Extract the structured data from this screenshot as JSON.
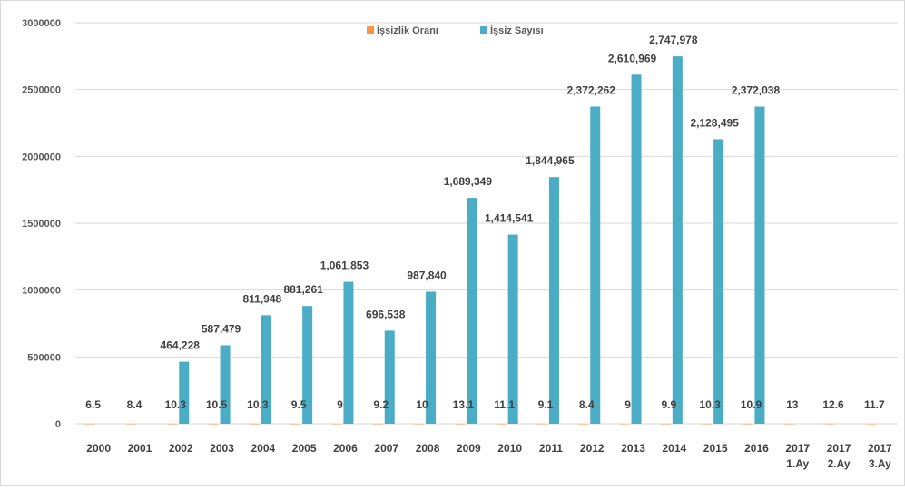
{
  "chart_data": {
    "type": "bar",
    "title": "",
    "xlabel": "",
    "ylabel": "",
    "ylim": [
      0,
      3000000
    ],
    "yticks": [
      0,
      500000,
      1000000,
      1500000,
      2000000,
      2500000,
      3000000
    ],
    "ytick_labels": [
      "0",
      "500000",
      "1000000",
      "1500000",
      "2000000",
      "2500000",
      "3000000"
    ],
    "grid": true,
    "legend_position": "top",
    "categories": [
      [
        "2000"
      ],
      [
        "2001"
      ],
      [
        "2002"
      ],
      [
        "2003"
      ],
      [
        "2004"
      ],
      [
        "2005"
      ],
      [
        "2006"
      ],
      [
        "2007"
      ],
      [
        "2008"
      ],
      [
        "2009"
      ],
      [
        "2010"
      ],
      [
        "2011"
      ],
      [
        "2012"
      ],
      [
        "2013"
      ],
      [
        "2014"
      ],
      [
        "2015"
      ],
      [
        "2016"
      ],
      [
        "2017",
        "1.Ay"
      ],
      [
        "2017",
        "2.Ay"
      ],
      [
        "2017",
        "3.Ay"
      ]
    ],
    "series": [
      {
        "name": "İşsizlik Oranı",
        "color": "#f79646",
        "values": [
          6.5,
          8.4,
          10.3,
          10.5,
          10.3,
          9.5,
          9,
          9.2,
          10,
          13.1,
          11.1,
          9.1,
          8.4,
          9,
          9.9,
          10.3,
          10.9,
          13,
          12.6,
          11.7
        ],
        "labels": [
          "6.5",
          "8.4",
          "10.3",
          "10.5",
          "10.3",
          "9.5",
          "9",
          "9.2",
          "10",
          "13.1",
          "11.1",
          "9.1",
          "8.4",
          "9",
          "9.9",
          "10.3",
          "10.9",
          "13",
          "12.6",
          "11.7"
        ]
      },
      {
        "name": "İşsiz Sayısı",
        "color": "#4bacc6",
        "values": [
          null,
          null,
          464228,
          587479,
          811948,
          881261,
          1061853,
          696538,
          987840,
          1689349,
          1414541,
          1844965,
          2372262,
          2610969,
          2747978,
          2128495,
          2372038,
          null,
          null,
          null
        ],
        "labels": [
          null,
          null,
          "464,228",
          "587,479",
          "811,948",
          "881,261",
          "1,061,853",
          "696,538",
          "987,840",
          "1,689,349",
          "1,414,541",
          "1,844,965",
          "2,372,262",
          "2,610,969",
          "2,747,978",
          "2,128,495",
          "2,372,038",
          null,
          null,
          null
        ]
      }
    ]
  },
  "legend": {
    "rate_label": "İşsizlik Oranı",
    "count_label": "İşsiz Sayısı"
  }
}
